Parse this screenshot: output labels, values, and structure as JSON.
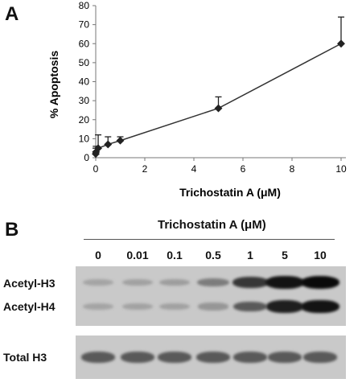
{
  "panel_a_label": "A",
  "panel_b_label": "B",
  "chart_data": {
    "type": "line",
    "xlabel": "Trichostatin A (μM)",
    "ylabel": "% Apoptosis",
    "xlim": [
      0,
      10
    ],
    "ylim": [
      0,
      80
    ],
    "x_ticks": [
      "0",
      "2",
      "4",
      "6",
      "8",
      "10"
    ],
    "y_ticks": [
      "0",
      "10",
      "20",
      "30",
      "40",
      "50",
      "60",
      "70",
      "80"
    ],
    "grid": false,
    "series": [
      {
        "x": [
          0,
          0.01,
          0.1,
          0.5,
          1,
          5,
          10
        ],
        "values": [
          2,
          3,
          5,
          7,
          9,
          26,
          60
        ],
        "error_up": [
          3,
          3,
          7,
          4,
          2,
          6,
          14
        ]
      }
    ]
  },
  "blot": {
    "title": "Trichostatin A (μM)",
    "concentrations": [
      "0",
      "0.01",
      "0.1",
      "0.5",
      "1",
      "5",
      "10"
    ],
    "rows": [
      {
        "label": "Acetyl-H3",
        "intensities": [
          0.12,
          0.14,
          0.16,
          0.35,
          0.75,
          0.95,
          1.0
        ]
      },
      {
        "label": "Acetyl-H4",
        "intensities": [
          0.12,
          0.13,
          0.14,
          0.2,
          0.55,
          0.88,
          0.95
        ]
      },
      {
        "label": "Total H3",
        "intensities": [
          0.55,
          0.55,
          0.55,
          0.55,
          0.55,
          0.55,
          0.55
        ]
      }
    ]
  }
}
